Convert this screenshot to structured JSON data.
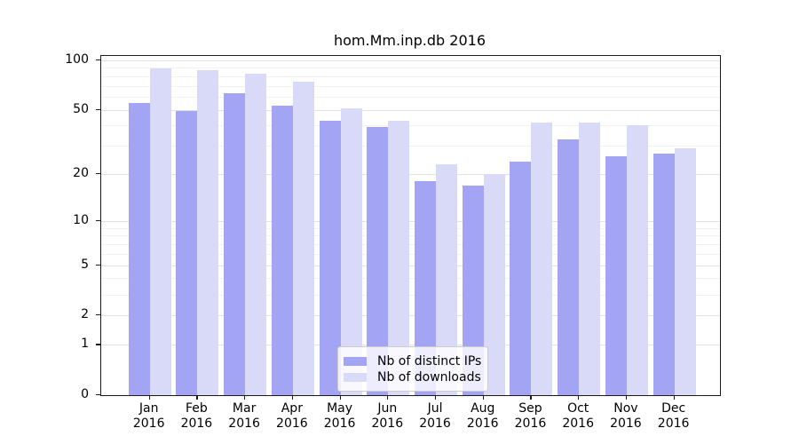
{
  "title": "hom.Mm.inp.db 2016",
  "colors": {
    "ips": "#a4a4f4",
    "downloads": "#d9d9f8",
    "grid_major": "#e0e0e0",
    "grid_minor": "#f1f1f1",
    "spine": "#1a1a1a"
  },
  "legend": {
    "items": [
      {
        "label": "Nb of distinct IPs",
        "color_key": "ips"
      },
      {
        "label": "Nb of downloads",
        "color_key": "downloads"
      }
    ]
  },
  "chart_data": {
    "type": "bar",
    "title": "hom.Mm.inp.db 2016",
    "categories": [
      "Jan",
      "Feb",
      "Mar",
      "Apr",
      "May",
      "Jun",
      "Jul",
      "Aug",
      "Sep",
      "Oct",
      "Nov",
      "Dec"
    ],
    "year_label": "2016",
    "series": [
      {
        "name": "Nb of distinct IPs",
        "color_key": "ips",
        "values": [
          55,
          49,
          63,
          53,
          43,
          39,
          18,
          17,
          24,
          33,
          26,
          27
        ]
      },
      {
        "name": "Nb of downloads",
        "color_key": "downloads",
        "values": [
          89,
          87,
          83,
          74,
          51,
          43,
          23,
          20,
          42,
          42,
          40,
          29
        ]
      }
    ],
    "yscale": "log1p",
    "ylabel": "",
    "xlabel": "",
    "yticks": [
      0,
      1,
      2,
      5,
      10,
      20,
      50,
      100
    ],
    "minor_gridlines": [
      3,
      4,
      6,
      7,
      8,
      9,
      30,
      40,
      60,
      70,
      80,
      90
    ],
    "ylim": [
      0,
      106
    ],
    "grid": true,
    "legend_position": "lower center"
  }
}
